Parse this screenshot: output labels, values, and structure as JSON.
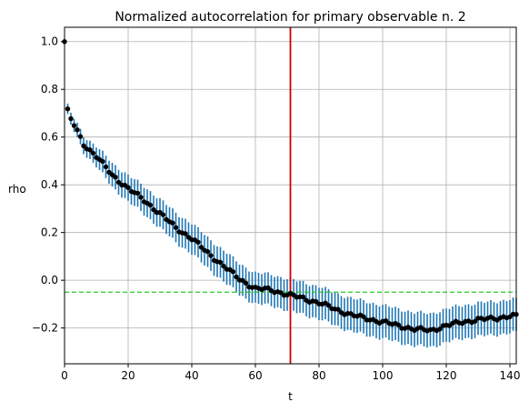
{
  "chart_data": {
    "type": "scatter",
    "title": "Normalized autocorrelation for primary observable n. 2",
    "xlabel": "t",
    "ylabel": "rho",
    "xlim": [
      0,
      142
    ],
    "ylim": [
      -0.35,
      1.06
    ],
    "xticks": [
      0,
      20,
      40,
      60,
      80,
      100,
      120,
      140
    ],
    "yticks": [
      -0.2,
      0.0,
      0.2,
      0.4,
      0.6,
      0.8,
      1.0
    ],
    "xtick_labels": [
      "0",
      "20",
      "40",
      "60",
      "80",
      "100",
      "120",
      "140"
    ],
    "ytick_labels": [
      "−0.2",
      "0.0",
      "0.2",
      "0.4",
      "0.6",
      "0.8",
      "1.0"
    ],
    "grid": true,
    "vline": {
      "x": 71,
      "color": "#cc0000"
    },
    "hline": {
      "y": -0.05,
      "color": "#22cc22",
      "style": "dashed"
    },
    "marker_color": "#000000",
    "errorbar_color": "#1f77b4",
    "anchors": [
      {
        "t": 1,
        "rho": 0.71,
        "err": 0.022
      },
      {
        "t": 2,
        "rho": 0.675,
        "err": 0.025
      },
      {
        "t": 4,
        "rho": 0.625,
        "err": 0.03
      },
      {
        "t": 6,
        "rho": 0.57,
        "err": 0.035
      },
      {
        "t": 10,
        "rho": 0.52,
        "err": 0.042
      },
      {
        "t": 15,
        "rho": 0.44,
        "err": 0.05
      },
      {
        "t": 20,
        "rho": 0.385,
        "err": 0.055
      },
      {
        "t": 25,
        "rho": 0.335,
        "err": 0.058
      },
      {
        "t": 30,
        "rho": 0.28,
        "err": 0.06
      },
      {
        "t": 35,
        "rho": 0.22,
        "err": 0.062
      },
      {
        "t": 40,
        "rho": 0.175,
        "err": 0.063
      },
      {
        "t": 45,
        "rho": 0.115,
        "err": 0.064
      },
      {
        "t": 50,
        "rho": 0.06,
        "err": 0.065
      },
      {
        "t": 55,
        "rho": 0.005,
        "err": 0.065
      },
      {
        "t": 60,
        "rho": -0.035,
        "err": 0.065
      },
      {
        "t": 65,
        "rho": -0.04,
        "err": 0.065
      },
      {
        "t": 70,
        "rho": -0.06,
        "err": 0.066
      },
      {
        "t": 75,
        "rho": -0.075,
        "err": 0.067
      },
      {
        "t": 80,
        "rho": -0.095,
        "err": 0.068
      },
      {
        "t": 85,
        "rho": -0.12,
        "err": 0.068
      },
      {
        "t": 90,
        "rho": -0.145,
        "err": 0.07
      },
      {
        "t": 95,
        "rho": -0.16,
        "err": 0.07
      },
      {
        "t": 100,
        "rho": -0.175,
        "err": 0.07
      },
      {
        "t": 105,
        "rho": -0.19,
        "err": 0.07
      },
      {
        "t": 110,
        "rho": -0.205,
        "err": 0.07
      },
      {
        "t": 115,
        "rho": -0.21,
        "err": 0.07
      },
      {
        "t": 120,
        "rho": -0.19,
        "err": 0.07
      },
      {
        "t": 125,
        "rho": -0.175,
        "err": 0.07
      },
      {
        "t": 130,
        "rho": -0.165,
        "err": 0.07
      },
      {
        "t": 135,
        "rho": -0.16,
        "err": 0.07
      },
      {
        "t": 140,
        "rho": -0.15,
        "err": 0.07
      },
      {
        "t": 142,
        "rho": -0.15,
        "err": 0.07
      }
    ],
    "point0": {
      "t": 0,
      "rho": 1.0,
      "err": 0.0
    }
  }
}
